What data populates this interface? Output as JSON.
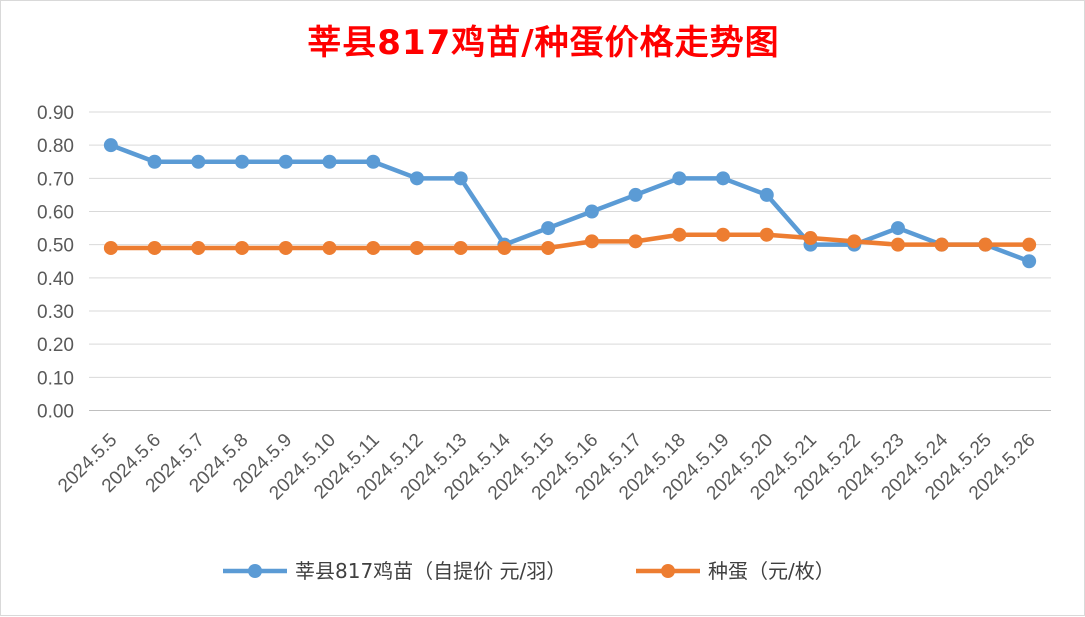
{
  "chart_data": {
    "type": "line",
    "title": "莘县817鸡苗/种蛋价格走势图",
    "categories": [
      "2024.5.5",
      "2024.5.6",
      "2024.5.7",
      "2024.5.8",
      "2024.5.9",
      "2024.5.10",
      "2024.5.11",
      "2024.5.12",
      "2024.5.13",
      "2024.5.14",
      "2024.5.15",
      "2024.5.16",
      "2024.5.17",
      "2024.5.18",
      "2024.5.19",
      "2024.5.20",
      "2024.5.21",
      "2024.5.22",
      "2024.5.23",
      "2024.5.24",
      "2024.5.25",
      "2024.5.26"
    ],
    "series": [
      {
        "name": "莘县817鸡苗（自提价 元/羽）",
        "color": "#5b9bd5",
        "values": [
          0.8,
          0.75,
          0.75,
          0.75,
          0.75,
          0.75,
          0.75,
          0.7,
          0.7,
          0.5,
          0.55,
          0.6,
          0.65,
          0.7,
          0.7,
          0.65,
          0.5,
          0.5,
          0.55,
          0.5,
          0.5,
          0.45
        ]
      },
      {
        "name": "种蛋（元/枚）",
        "color": "#ed7d31",
        "values": [
          0.49,
          0.49,
          0.49,
          0.49,
          0.49,
          0.49,
          0.49,
          0.49,
          0.49,
          0.49,
          0.49,
          0.51,
          0.51,
          0.53,
          0.53,
          0.53,
          0.52,
          0.51,
          0.5,
          0.5,
          0.5,
          0.5
        ]
      }
    ],
    "yticks": [
      "0.00",
      "0.10",
      "0.20",
      "0.30",
      "0.40",
      "0.50",
      "0.60",
      "0.70",
      "0.80",
      "0.90"
    ],
    "ylim": [
      0,
      0.9
    ],
    "grid": true,
    "legend_position": "bottom"
  }
}
